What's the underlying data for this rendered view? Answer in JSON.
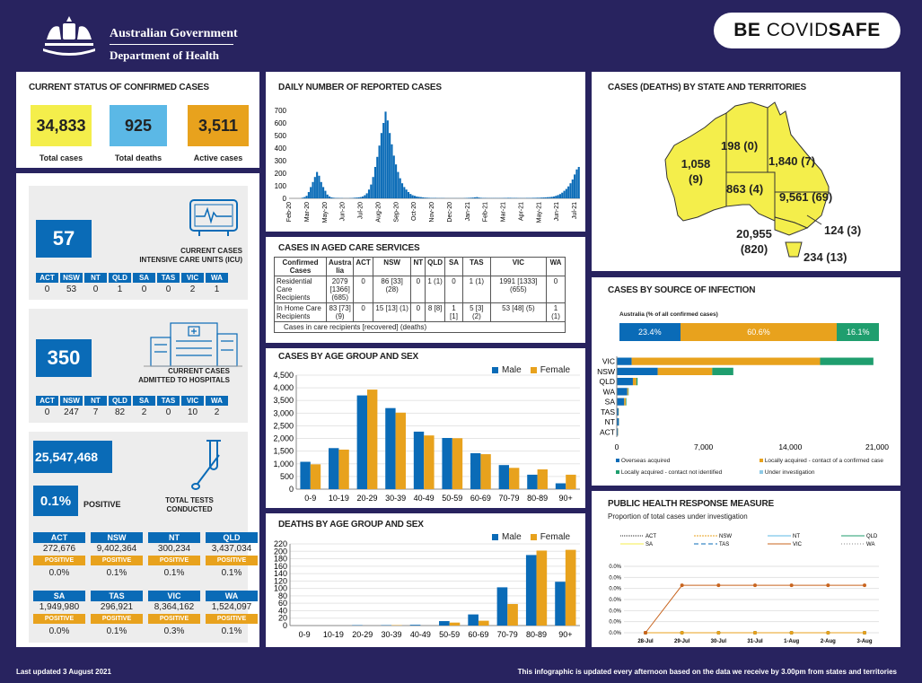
{
  "header": {
    "gov_line1": "Australian Government",
    "gov_line2": "Department of Health",
    "covidsafe_be": "BE ",
    "covidsafe_a": "COVID",
    "covidsafe_b": "SAFE"
  },
  "status": {
    "title": "CURRENT STATUS OF CONFIRMED CASES",
    "total_cases": "34,833",
    "total_cases_label": "Total cases",
    "total_deaths": "925",
    "total_deaths_label": "Total deaths",
    "active_cases": "3,511",
    "active_cases_label": "Active cases",
    "colors": {
      "total": "#f4ee4b",
      "deaths": "#5bb8e6",
      "active": "#e8a21d"
    }
  },
  "icu": {
    "value": "57",
    "caption1": "CURRENT CASES",
    "caption2": "INTENSIVE CARE UNITS (ICU)",
    "states": [
      "ACT",
      "NSW",
      "NT",
      "QLD",
      "SA",
      "TAS",
      "VIC",
      "WA"
    ],
    "values": [
      "0",
      "53",
      "0",
      "1",
      "0",
      "0",
      "2",
      "1"
    ]
  },
  "hospital": {
    "value": "350",
    "caption1": "CURRENT CASES",
    "caption2": "ADMITTED TO HOSPITALS",
    "states": [
      "ACT",
      "NSW",
      "NT",
      "QLD",
      "SA",
      "TAS",
      "VIC",
      "WA"
    ],
    "values": [
      "0",
      "247",
      "7",
      "82",
      "2",
      "0",
      "10",
      "2"
    ]
  },
  "tests": {
    "value": "25,547,468",
    "positive_pct": "0.1%",
    "positive_label": "POSITIVE",
    "caption1": "TOTAL TESTS",
    "caption2": "CONDUCTED",
    "rows": [
      {
        "states": [
          "ACT",
          "NSW",
          "NT",
          "QLD"
        ],
        "values": [
          "272,676",
          "9,402,364",
          "300,234",
          "3,437,034"
        ],
        "pct": [
          "0.0%",
          "0.1%",
          "0.1%",
          "0.1%"
        ]
      },
      {
        "states": [
          "SA",
          "TAS",
          "VIC",
          "WA"
        ],
        "values": [
          "1,949,980",
          "296,921",
          "8,364,162",
          "1,524,097"
        ],
        "pct": [
          "0.0%",
          "0.1%",
          "0.3%",
          "0.1%"
        ]
      }
    ],
    "positive_tag": "POSITIVE"
  },
  "daily": {
    "title": "DAILY NUMBER OF REPORTED CASES",
    "yticks": [
      "0",
      "100",
      "200",
      "300",
      "400",
      "500",
      "600",
      "700"
    ],
    "xticks": [
      "Feb-20",
      "Mar-20",
      "May-20",
      "Jun-20",
      "Jul-20",
      "Aug-20",
      "Sep-20",
      "Oct-20",
      "Nov-20",
      "Dec-20",
      "Jan-21",
      "Feb-21",
      "Mar-21",
      "Apr-21",
      "May-21",
      "Jun-21",
      "Jul-21"
    ]
  },
  "aged": {
    "title": "CASES IN AGED CARE SERVICES",
    "headers": [
      "Confirmed Cases",
      "Austra lia",
      "ACT",
      "NSW",
      "NT",
      "QLD",
      "SA",
      "TAS",
      "VIC",
      "WA"
    ],
    "rows": [
      [
        "Residential Care Recipients",
        "2079 [1366] (685)",
        "0",
        "86 [33] (28)",
        "0",
        "1 (1)",
        "0",
        "1 (1)",
        "1991 [1333] (655)",
        "0"
      ],
      [
        "In Home Care Recipients",
        "83 [73] (9)",
        "0",
        "15 [13] (1)",
        "0",
        "8 [8]",
        "1 [1]",
        "5 [3] (2)",
        "53 [48] (5)",
        "1 (1)"
      ]
    ],
    "note": "Cases in care recipients [recovered] (deaths)"
  },
  "age_sex": {
    "title": "CASES BY AGE GROUP AND SEX",
    "legend_male": "Male",
    "legend_female": "Female",
    "yticks": [
      "0",
      "500",
      "1,000",
      "1,500",
      "2,000",
      "2,500",
      "3,000",
      "3,500",
      "4,000",
      "4,500"
    ]
  },
  "deaths_age": {
    "title": "DEATHS BY AGE GROUP AND SEX",
    "legend_male": "Male",
    "legend_female": "Female",
    "yticks": [
      "0",
      "20",
      "40",
      "60",
      "80",
      "100",
      "120",
      "140",
      "160",
      "180",
      "200",
      "220"
    ]
  },
  "map": {
    "title": "CASES (DEATHS) BY STATE AND TERRITORIES",
    "wa": "1,058 (9)",
    "nt": "198 (0)",
    "qld": "1,840 (7)",
    "sa": "863 (4)",
    "nsw": "9,561 (69)",
    "act": "124 (3)",
    "vic": "20,955 (820)",
    "tas": "234 (13)"
  },
  "source": {
    "title": "CASES BY SOURCE OF INFECTION",
    "subtitle": "Australia (% of all confirmed cases)",
    "aus_labels": [
      "23.4%",
      "60.6%",
      "16.1%"
    ],
    "xticks": [
      "0",
      "7,000",
      "14,000",
      "21,000"
    ],
    "legend": [
      "Overseas acquired",
      "Locally acquired - contact of a confirmed case",
      "Locally acquired - contact not identified",
      "Under investigation"
    ]
  },
  "phrm": {
    "title": "PUBLIC HEALTH RESPONSE MEASURE",
    "subtitle": "Proportion of total cases under investigation",
    "legend": [
      "ACT",
      "NSW",
      "NT",
      "QLD",
      "SA",
      "TAS",
      "VIC",
      "WA"
    ],
    "yticks": [
      "0.0%",
      "0.0%",
      "0.0%",
      "0.0%",
      "0.0%",
      "0.0%",
      "0.0%"
    ],
    "xticks": [
      "28-Jul",
      "29-Jul",
      "30-Jul",
      "31-Jul",
      "1-Aug",
      "2-Aug",
      "3-Aug"
    ]
  },
  "footer": {
    "left": "Last updated 3 August 2021",
    "right": "This infographic is updated every afternoon based on the data we receive by 3.00pm from states and territories"
  },
  "chart_data": [
    {
      "type": "bar",
      "title": "DAILY NUMBER OF REPORTED CASES",
      "ylim": [
        0,
        700
      ],
      "series": [
        {
          "name": "",
          "values": [
            0,
            0,
            0,
            0,
            0,
            0,
            5,
            10,
            20,
            50,
            90,
            130,
            170,
            210,
            180,
            130,
            90,
            60,
            30,
            15,
            8,
            5,
            3,
            3,
            2,
            2,
            1,
            1,
            1,
            2,
            3,
            5,
            6,
            8,
            10,
            15,
            25,
            40,
            70,
            110,
            170,
            250,
            330,
            420,
            520,
            600,
            690,
            620,
            520,
            430,
            340,
            270,
            210,
            160,
            120,
            90,
            70,
            50,
            35,
            25,
            20,
            15,
            12,
            10,
            8,
            6,
            5,
            4,
            3,
            3,
            3,
            2,
            2,
            2,
            2,
            1,
            1,
            1,
            1,
            1,
            1,
            1,
            1,
            1,
            2,
            3,
            4,
            5,
            6,
            8,
            10,
            6,
            4,
            3,
            3,
            2,
            2,
            2,
            2,
            2,
            2,
            2,
            2,
            3,
            3,
            4,
            4,
            3,
            3,
            3,
            2,
            2,
            2,
            2,
            3,
            3,
            3,
            4,
            4,
            5,
            5,
            6,
            7,
            8,
            9,
            10,
            12,
            15,
            20,
            26,
            34,
            45,
            60,
            75,
            95,
            120,
            150,
            190,
            230,
            250
          ]
        }
      ],
      "xticks": [
        "Feb-20",
        "Mar-20",
        "May-20",
        "Jun-20",
        "Jul-20",
        "Aug-20",
        "Sep-20",
        "Oct-20",
        "Nov-20",
        "Dec-20",
        "Jan-21",
        "Feb-21",
        "Mar-21",
        "Apr-21",
        "May-21",
        "Jun-21",
        "Jul-21"
      ],
      "color": "#0a6bb7"
    },
    {
      "type": "bar",
      "title": "CASES BY AGE GROUP AND SEX",
      "categories": [
        "0-9",
        "10-19",
        "20-29",
        "30-39",
        "40-49",
        "50-59",
        "60-69",
        "70-79",
        "80-89",
        "90+"
      ],
      "series": [
        {
          "name": "Male",
          "values": [
            1080,
            1620,
            3700,
            3200,
            2270,
            2020,
            1420,
            950,
            570,
            230
          ],
          "color": "#0a6bb7"
        },
        {
          "name": "Female",
          "values": [
            980,
            1560,
            3930,
            3020,
            2120,
            2010,
            1380,
            840,
            780,
            570
          ],
          "color": "#e8a21d"
        }
      ],
      "ylim": [
        0,
        4500
      ]
    },
    {
      "type": "bar",
      "title": "DEATHS BY AGE GROUP AND SEX",
      "categories": [
        "0-9",
        "10-19",
        "20-29",
        "30-39",
        "40-49",
        "50-59",
        "60-69",
        "70-79",
        "80-89",
        "90+"
      ],
      "series": [
        {
          "name": "Male",
          "values": [
            0,
            0,
            1,
            1,
            2,
            12,
            30,
            103,
            190,
            118
          ],
          "color": "#0a6bb7"
        },
        {
          "name": "Female",
          "values": [
            0,
            0,
            0,
            1,
            0,
            8,
            13,
            58,
            202,
            204
          ],
          "color": "#e8a21d"
        }
      ],
      "ylim": [
        0,
        220
      ]
    },
    {
      "type": "bar",
      "title": "CASES BY SOURCE OF INFECTION",
      "subtitle": "Australia (% of all confirmed cases)",
      "australia_pct": [
        23.4,
        60.6,
        16.1
      ],
      "categories": [
        "VIC",
        "NSW",
        "QLD",
        "WA",
        "SA",
        "TAS",
        "NT",
        "ACT"
      ],
      "series": [
        {
          "name": "Overseas acquired",
          "values": [
            1200,
            3300,
            1300,
            850,
            600,
            140,
            170,
            95
          ],
          "color": "#0a6bb7"
        },
        {
          "name": "Locally acquired - contact of a confirmed case",
          "values": [
            15200,
            4400,
            280,
            80,
            120,
            20,
            10,
            15
          ],
          "color": "#e8a21d"
        },
        {
          "name": "Locally acquired - contact not identified",
          "values": [
            4300,
            1700,
            100,
            30,
            50,
            5,
            5,
            5
          ],
          "color": "#1f9e6e"
        },
        {
          "name": "Under investigation",
          "values": [
            0,
            0,
            0,
            0,
            0,
            0,
            0,
            0
          ],
          "color": "#8ecae6"
        }
      ],
      "xlim": [
        0,
        21000
      ]
    },
    {
      "type": "line",
      "title": "PUBLIC HEALTH RESPONSE MEASURE",
      "subtitle": "Proportion of total cases under investigation",
      "x": [
        "28-Jul",
        "29-Jul",
        "30-Jul",
        "31-Jul",
        "1-Aug",
        "2-Aug",
        "3-Aug"
      ],
      "series": [
        {
          "name": "VIC",
          "values": [
            0,
            0.0005,
            0.0005,
            0.0005,
            0.0005,
            0.0005,
            0.0005
          ],
          "color": "#c8641e"
        },
        {
          "name": "NSW",
          "values": [
            0,
            0,
            0,
            0,
            0,
            0,
            0
          ],
          "color": "#e8a21d"
        },
        {
          "name": "ACT",
          "values": [
            0,
            0,
            0,
            0,
            0,
            0,
            0
          ],
          "color": "#222222"
        },
        {
          "name": "NT",
          "values": [
            0,
            0,
            0,
            0,
            0,
            0,
            0
          ],
          "color": "#5bb8e6"
        },
        {
          "name": "QLD",
          "values": [
            0,
            0,
            0,
            0,
            0,
            0,
            0
          ],
          "color": "#1f9e6e"
        },
        {
          "name": "SA",
          "values": [
            0,
            0,
            0,
            0,
            0,
            0,
            0
          ],
          "color": "#f4ee4b"
        },
        {
          "name": "TAS",
          "values": [
            0,
            0,
            0,
            0,
            0,
            0,
            0
          ],
          "color": "#0a6bb7"
        },
        {
          "name": "WA",
          "values": [
            0,
            0,
            0,
            0,
            0,
            0,
            0
          ],
          "color": "#888888"
        }
      ]
    }
  ]
}
